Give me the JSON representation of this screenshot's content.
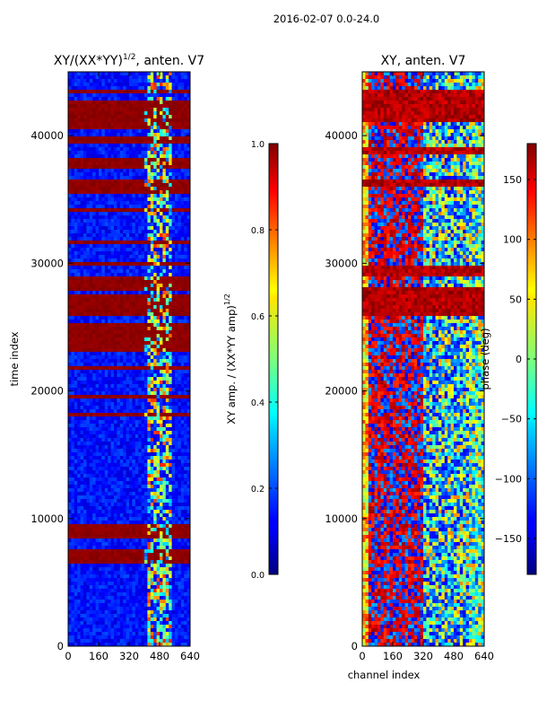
{
  "figure": {
    "suptitle": "2016-02-07 0.0-24.0"
  },
  "chart_data": [
    {
      "type": "heatmap",
      "title_main": "XY/(XX*YY)",
      "title_exp": "1/2",
      "title_tail": ", anten. V7",
      "xlabel": "",
      "ylabel": "time index",
      "xlim": [
        0,
        640
      ],
      "ylim": [
        0,
        45000
      ],
      "xticks": [
        0,
        160,
        320,
        480,
        640
      ],
      "yticks": [
        0,
        10000,
        20000,
        30000,
        40000
      ],
      "colorbar": {
        "label_main": "XY amp. / (XX*YY amp)",
        "label_exp": "1/2",
        "range": [
          0.0,
          1.0
        ],
        "ticks": [
          0.0,
          0.2,
          0.4,
          0.6,
          0.8,
          1.0
        ],
        "tick_labels": [
          "0.0",
          "0.2",
          "0.4",
          "0.6",
          "0.8",
          "1.0"
        ],
        "colormap": "jet"
      },
      "saturated_time_bands": [
        [
          6500,
          7500
        ],
        [
          8300,
          9600
        ],
        [
          18100,
          18200
        ],
        [
          19500,
          19600
        ],
        [
          21700,
          21800
        ],
        [
          23000,
          25300
        ],
        [
          25800,
          26600
        ],
        [
          26700,
          27500
        ],
        [
          27800,
          29000
        ],
        [
          29900,
          30100
        ],
        [
          31400,
          31700
        ],
        [
          32500,
          32700
        ],
        [
          34000,
          34300
        ],
        [
          35500,
          36600
        ],
        [
          37500,
          38200
        ],
        [
          39500,
          40000
        ],
        [
          40400,
          41500
        ],
        [
          41700,
          42800
        ],
        [
          43200,
          43600
        ]
      ]
    },
    {
      "type": "heatmap",
      "title_main": "XY, anten. V7",
      "xlabel": "channel index",
      "ylabel": "",
      "xlim": [
        0,
        640
      ],
      "ylim": [
        0,
        45000
      ],
      "xticks": [
        0,
        160,
        320,
        480,
        640
      ],
      "yticks": [
        0,
        10000,
        20000,
        30000,
        40000
      ],
      "colorbar": {
        "label_main": "phase (deg)",
        "range": [
          -180,
          180
        ],
        "ticks": [
          -150,
          -100,
          -50,
          0,
          50,
          100,
          150
        ],
        "tick_labels": [
          "−150",
          "−100",
          "−50",
          "0",
          "50",
          "100",
          "150"
        ],
        "colormap": "jet"
      },
      "saturated_time_bands": [
        [
          9500,
          9700
        ],
        [
          26000,
          28000
        ],
        [
          29000,
          29800
        ],
        [
          36000,
          36600
        ],
        [
          38500,
          39200
        ],
        [
          41000,
          43500
        ]
      ]
    }
  ],
  "colors": {
    "jet_dark_blue": "#00007f",
    "jet_blue": "#0000ff",
    "jet_cyan": "#00ffff",
    "jet_yellow": "#ffff00",
    "jet_red": "#ff0000",
    "jet_dark_red": "#7f0000",
    "axis": "#000000"
  }
}
